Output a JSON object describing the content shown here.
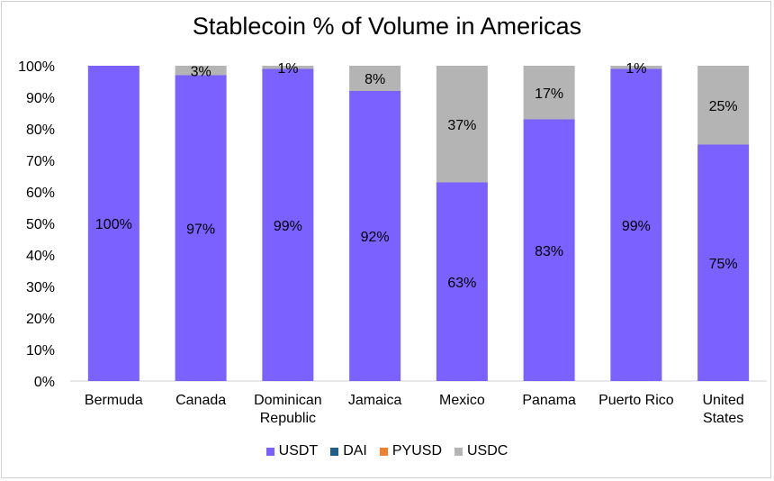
{
  "chart_data": {
    "type": "bar",
    "stacked": true,
    "title": "Stablecoin % of Volume in Americas",
    "categories": [
      "Bermuda",
      "Canada",
      "Dominican Republic",
      "Jamaica",
      "Mexico",
      "Panama",
      "Puerto Rico",
      "United States"
    ],
    "category_lines": [
      [
        "Bermuda"
      ],
      [
        "Canada"
      ],
      [
        "Dominican",
        "Republic"
      ],
      [
        "Jamaica"
      ],
      [
        "Mexico"
      ],
      [
        "Panama"
      ],
      [
        "Puerto Rico"
      ],
      [
        "United",
        "States"
      ]
    ],
    "series": [
      {
        "name": "USDT",
        "color": "#7b61ff",
        "values": [
          100,
          97,
          99,
          92,
          63,
          83,
          99,
          75
        ],
        "labels": [
          "100%",
          "97%",
          "99%",
          "92%",
          "63%",
          "83%",
          "99%",
          "75%"
        ]
      },
      {
        "name": "DAI",
        "color": "#1f5f8b",
        "values": [
          0,
          0,
          0,
          0,
          0,
          0,
          0,
          0
        ],
        "labels": [
          "",
          "",
          "",
          "",
          "",
          "",
          "",
          ""
        ]
      },
      {
        "name": "PYUSD",
        "color": "#f07f2e",
        "values": [
          0,
          0,
          0,
          0,
          0,
          0,
          0,
          0
        ],
        "labels": [
          "",
          "",
          "",
          "",
          "",
          "",
          "",
          ""
        ]
      },
      {
        "name": "USDC",
        "color": "#b4b4b4",
        "values": [
          0,
          3,
          1,
          8,
          37,
          17,
          1,
          25
        ],
        "labels": [
          "",
          "3%",
          "1%",
          "8%",
          "37%",
          "17%",
          "1%",
          "25%"
        ]
      }
    ],
    "ylim": [
      0,
      100
    ],
    "yticks": [
      "0%",
      "10%",
      "20%",
      "30%",
      "40%",
      "50%",
      "60%",
      "70%",
      "80%",
      "90%",
      "100%"
    ],
    "grid": false,
    "legend_position": "bottom"
  }
}
